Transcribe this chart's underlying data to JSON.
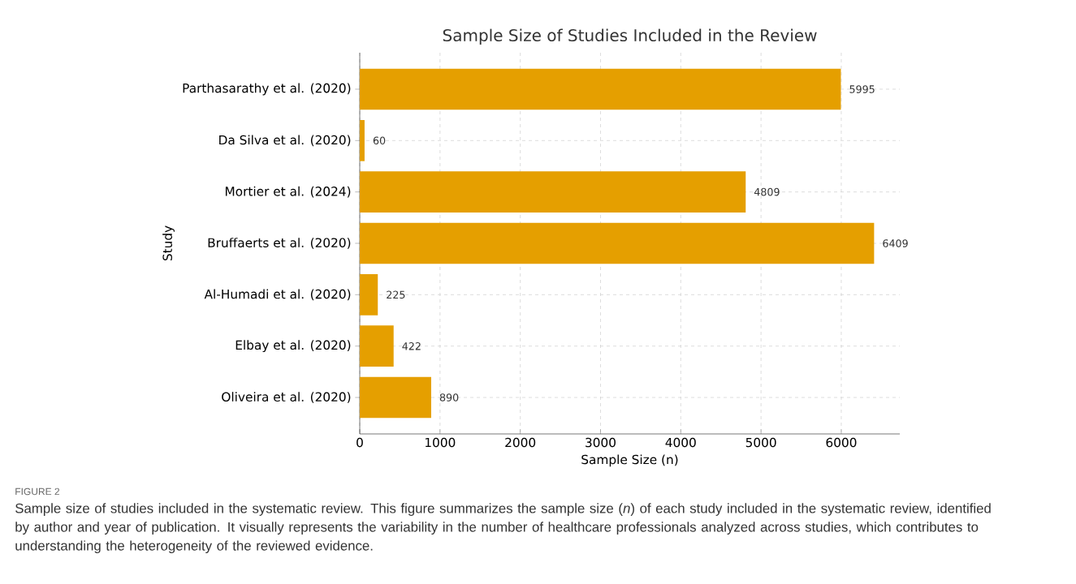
{
  "chart_data": {
    "type": "bar",
    "orientation": "horizontal",
    "title": "Sample Size of Studies Included in the Review",
    "xlabel": "Sample Size (n)",
    "ylabel": "Study",
    "categories": [
      "Parthasarathy et al. (2020)",
      "Da Silva et al. (2020)",
      "Mortier et al. (2024)",
      "Bruffaerts et al. (2020)",
      "Al-Humadi et al. (2020)",
      "Elbay et al. (2020)",
      "Oliveira et al. (2020)"
    ],
    "values": [
      5995,
      60,
      4809,
      6409,
      225,
      422,
      890
    ],
    "color": "#e59f00",
    "data_labels": true,
    "grid": true,
    "xlim": [
      0,
      6729
    ],
    "xticks": [
      0,
      1000,
      2000,
      3000,
      4000,
      5000,
      6000
    ],
    "annotations": [
      "FIGURE 2",
      "Sample size of studies included in the systematic review. This figure summarizes the sample size (*n*) of each study included in the systematic review, identified by author and year of publication. It visually represents the variability in the number of healthcare professionals analyzed across studies, which contributes to understanding the heterogeneity of the reviewed evidence."
    ]
  }
}
